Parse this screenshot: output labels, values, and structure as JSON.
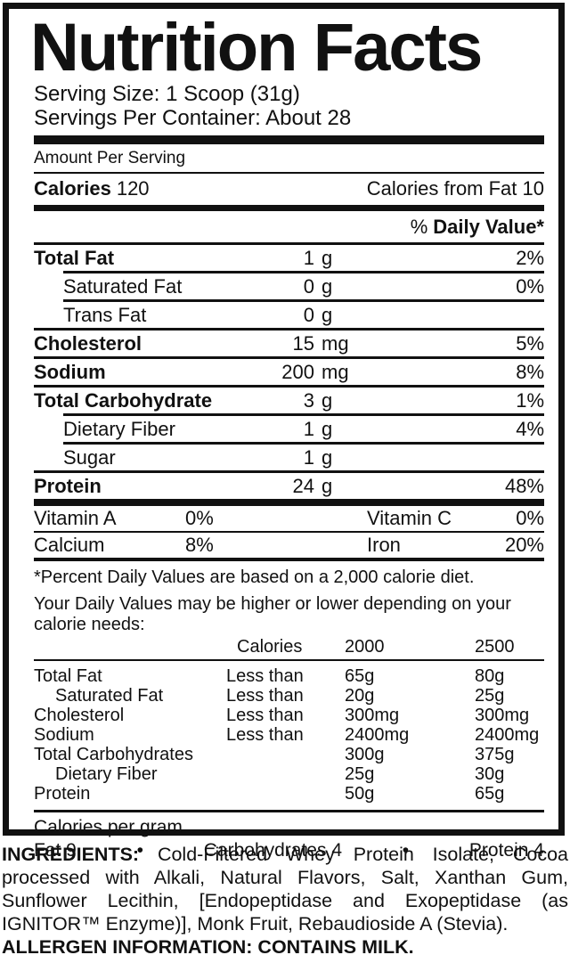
{
  "label": {
    "title": "Nutrition Facts",
    "serving_size": "Serving Size: 1 Scoop (31g)",
    "servings_per_container": "Servings Per Container: About 28",
    "amount_per_serving": "Amount Per Serving",
    "calories_label": "Calories",
    "calories_value": "120",
    "calories_from_fat": "Calories from Fat 10",
    "daily_value_percent": "%",
    "daily_value_label": "Daily Value*",
    "rows": [
      {
        "name": "Total Fat",
        "amount": "1",
        "unit": "g",
        "dv": "2%"
      },
      {
        "name": "Saturated Fat",
        "amount": "0",
        "unit": "g",
        "dv": "0%"
      },
      {
        "name": "Trans Fat",
        "amount": "0",
        "unit": "g",
        "dv": ""
      },
      {
        "name": "Cholesterol",
        "amount": "15",
        "unit": "mg",
        "dv": "5%"
      },
      {
        "name": "Sodium",
        "amount": "200",
        "unit": "mg",
        "dv": "8%"
      },
      {
        "name": "Total Carbohydrate",
        "amount": "3",
        "unit": "g",
        "dv": "1%"
      },
      {
        "name": "Dietary Fiber",
        "amount": "1",
        "unit": "g",
        "dv": "4%"
      },
      {
        "name": "Sugar",
        "amount": "1",
        "unit": "g",
        "dv": ""
      },
      {
        "name": "Protein",
        "amount": "24",
        "unit": "g",
        "dv": "48%"
      }
    ],
    "micronutrients": [
      {
        "left_name": "Vitamin A",
        "left_value": "0%",
        "right_name": "Vitamin C",
        "right_value": "0%"
      },
      {
        "left_name": "Calcium",
        "left_value": "8%",
        "right_name": "Iron",
        "right_value": "20%"
      }
    ],
    "footnote_line1": "*Percent Daily Values are based on a 2,000 calorie diet.",
    "footnote_line2": "Your Daily Values may be higher or lower depending on your calorie needs:",
    "dv_table": {
      "header": {
        "col2": "Calories",
        "col3": "2000",
        "col4": "2500"
      },
      "rows": [
        {
          "name": "Total Fat",
          "qualifier": "Less than",
          "v2000": "65g",
          "v2500": "80g"
        },
        {
          "name": "Saturated Fat",
          "qualifier": "Less than",
          "v2000": "20g",
          "v2500": "25g"
        },
        {
          "name": "Cholesterol",
          "qualifier": "Less than",
          "v2000": "300mg",
          "v2500": "300mg"
        },
        {
          "name": "Sodium",
          "qualifier": "Less than",
          "v2000": "2400mg",
          "v2500": "2400mg"
        },
        {
          "name": "Total Carbohydrates",
          "qualifier": "",
          "v2000": "300g",
          "v2500": "375g"
        },
        {
          "name": "Dietary Fiber",
          "qualifier": "",
          "v2000": "25g",
          "v2500": "30g"
        },
        {
          "name": "Protein",
          "qualifier": "",
          "v2000": "50g",
          "v2500": "65g"
        }
      ]
    },
    "calories_per_gram": {
      "title": "Calories per gram",
      "fat": "Fat 9",
      "carbs": "Carbohydrates 4",
      "protein": "Protein 4",
      "bullet": "•"
    },
    "colors": {
      "ink": "#111111",
      "background": "#ffffff"
    }
  },
  "ingredients": {
    "label": "INGREDIENTS:",
    "text": " Cold-Filtered Whey Protein Isolate, Cocoa processed with Alkali, Natural Flavors, Salt, Xanthan Gum, Sunflower Lecithin, [Endopeptidase and Exopeptidase (as IGNITOR™ Enzyme)], Monk Fruit, Rebaudioside A (Stevia).",
    "allergen": "ALLERGEN INFORMATION: CONTAINS MILK."
  }
}
